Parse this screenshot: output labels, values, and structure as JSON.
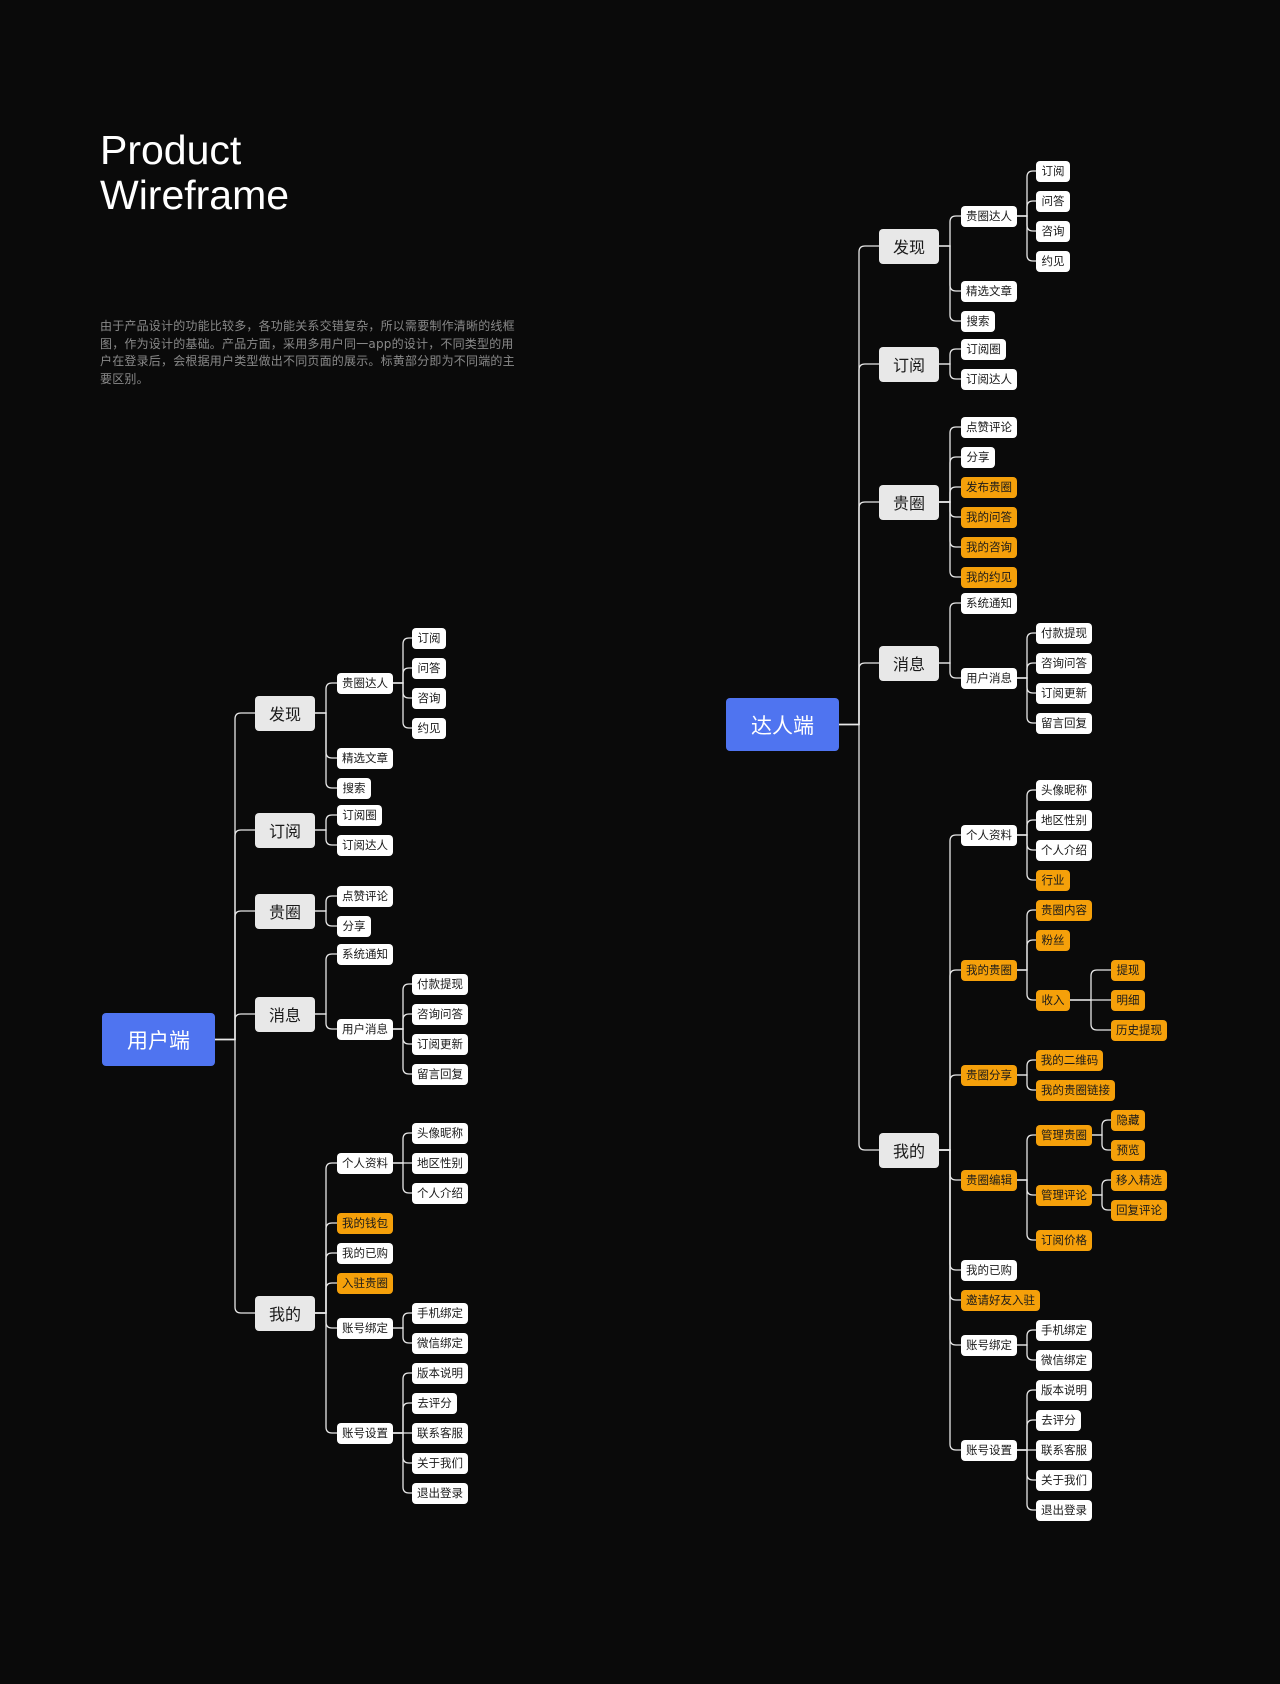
{
  "header": {
    "title_line1": "Product",
    "title_line2": "Wireframe",
    "description": "由于产品设计的功能比较多，各功能关系交错复杂，所以需要制作清晰的线框图，作为设计的基础。产品方面，采用多用户同一app的设计，不同类型的用户在登录后，会根据用户类型做出不同页面的展示。标黄部分即为不同端的主要区别。"
  },
  "colors": {
    "background": "#0a0a0a",
    "root": "#4f74f0",
    "highlight": "#f5a00a",
    "line": "#e8e8e8"
  },
  "trees": [
    {
      "label": "用户端",
      "children": [
        {
          "label": "发现",
          "children": [
            {
              "label": "贵圈达人",
              "children": [
                {
                  "label": "订阅"
                },
                {
                  "label": "问答"
                },
                {
                  "label": "咨询"
                },
                {
                  "label": "约见"
                }
              ]
            },
            {
              "label": "精选文章"
            },
            {
              "label": "搜索"
            }
          ]
        },
        {
          "label": "订阅",
          "children": [
            {
              "label": "订阅圈"
            },
            {
              "label": "订阅达人"
            }
          ]
        },
        {
          "label": "贵圈",
          "children": [
            {
              "label": "点赞评论"
            },
            {
              "label": "分享"
            }
          ]
        },
        {
          "label": "消息",
          "children": [
            {
              "label": "系统通知"
            },
            {
              "label": "用户消息",
              "children": [
                {
                  "label": "付款提现"
                },
                {
                  "label": "咨询问答"
                },
                {
                  "label": "订阅更新"
                },
                {
                  "label": "留言回复"
                }
              ]
            }
          ]
        },
        {
          "label": "我的",
          "children": [
            {
              "label": "个人资料",
              "children": [
                {
                  "label": "头像昵称"
                },
                {
                  "label": "地区性别"
                },
                {
                  "label": "个人介绍"
                }
              ]
            },
            {
              "label": "我的钱包",
              "highlight": true
            },
            {
              "label": "我的已购"
            },
            {
              "label": "入驻贵圈",
              "highlight": true
            },
            {
              "label": "账号绑定",
              "children": [
                {
                  "label": "手机绑定"
                },
                {
                  "label": "微信绑定"
                }
              ]
            },
            {
              "label": "账号设置",
              "children": [
                {
                  "label": "版本说明"
                },
                {
                  "label": "去评分"
                },
                {
                  "label": "联系客服"
                },
                {
                  "label": "关于我们"
                },
                {
                  "label": "退出登录"
                }
              ]
            }
          ]
        }
      ]
    },
    {
      "label": "达人端",
      "children": [
        {
          "label": "发现",
          "children": [
            {
              "label": "贵圈达人",
              "children": [
                {
                  "label": "订阅"
                },
                {
                  "label": "问答"
                },
                {
                  "label": "咨询"
                },
                {
                  "label": "约见"
                }
              ]
            },
            {
              "label": "精选文章"
            },
            {
              "label": "搜索"
            }
          ]
        },
        {
          "label": "订阅",
          "children": [
            {
              "label": "订阅圈"
            },
            {
              "label": "订阅达人"
            }
          ]
        },
        {
          "label": "贵圈",
          "children": [
            {
              "label": "点赞评论"
            },
            {
              "label": "分享"
            },
            {
              "label": "发布贵圈",
              "highlight": true
            },
            {
              "label": "我的问答",
              "highlight": true
            },
            {
              "label": "我的咨询",
              "highlight": true
            },
            {
              "label": "我的约见",
              "highlight": true
            }
          ]
        },
        {
          "label": "消息",
          "children": [
            {
              "label": "系统通知"
            },
            {
              "label": "用户消息",
              "children": [
                {
                  "label": "付款提现"
                },
                {
                  "label": "咨询问答"
                },
                {
                  "label": "订阅更新"
                },
                {
                  "label": "留言回复"
                }
              ]
            }
          ]
        },
        {
          "label": "我的",
          "children": [
            {
              "label": "个人资料",
              "children": [
                {
                  "label": "头像昵称"
                },
                {
                  "label": "地区性别"
                },
                {
                  "label": "个人介绍"
                },
                {
                  "label": "行业",
                  "highlight": true
                }
              ]
            },
            {
              "label": "我的贵圈",
              "highlight": true,
              "children": [
                {
                  "label": "贵圈内容",
                  "highlight": true
                },
                {
                  "label": "粉丝",
                  "highlight": true
                },
                {
                  "label": "收入",
                  "highlight": true,
                  "children": [
                    {
                      "label": "提现",
                      "highlight": true
                    },
                    {
                      "label": "明细",
                      "highlight": true
                    },
                    {
                      "label": "历史提现",
                      "highlight": true
                    }
                  ]
                }
              ]
            },
            {
              "label": "贵圈分享",
              "highlight": true,
              "children": [
                {
                  "label": "我的二维码",
                  "highlight": true
                },
                {
                  "label": "我的贵圈链接",
                  "highlight": true
                }
              ]
            },
            {
              "label": "贵圈编辑",
              "highlight": true,
              "children": [
                {
                  "label": "管理贵圈",
                  "highlight": true,
                  "children": [
                    {
                      "label": "隐藏",
                      "highlight": true
                    },
                    {
                      "label": "预览",
                      "highlight": true
                    }
                  ]
                },
                {
                  "label": "管理评论",
                  "highlight": true,
                  "children": [
                    {
                      "label": "移入精选",
                      "highlight": true
                    },
                    {
                      "label": "回复评论",
                      "highlight": true
                    }
                  ]
                },
                {
                  "label": "订阅价格",
                  "highlight": true
                }
              ]
            },
            {
              "label": "我的已购"
            },
            {
              "label": "邀请好友入驻",
              "highlight": true
            },
            {
              "label": "账号绑定",
              "children": [
                {
                  "label": "手机绑定"
                },
                {
                  "label": "微信绑定"
                }
              ]
            },
            {
              "label": "账号设置",
              "children": [
                {
                  "label": "版本说明"
                },
                {
                  "label": "去评分"
                },
                {
                  "label": "联系客服"
                },
                {
                  "label": "关于我们"
                },
                {
                  "label": "退出登录"
                }
              ]
            }
          ]
        }
      ]
    }
  ]
}
